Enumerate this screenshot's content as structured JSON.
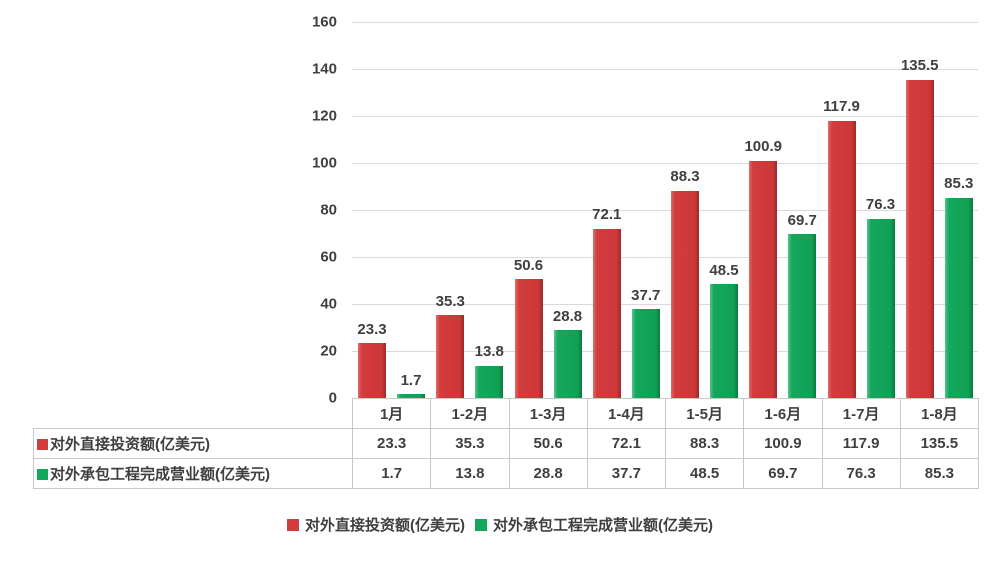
{
  "chart_data": {
    "type": "bar",
    "title": "",
    "xlabel": "",
    "ylabel": "",
    "categories": [
      "1月",
      "1-2月",
      "1-3月",
      "1-4月",
      "1-5月",
      "1-6月",
      "1-7月",
      "1-8月"
    ],
    "series": [
      {
        "name": "对外直接投资额(亿美元)",
        "values": [
          23.3,
          35.3,
          50.6,
          72.1,
          88.3,
          100.9,
          117.9,
          135.5
        ],
        "color": "#D23C3C",
        "color_light": "#E16A6A",
        "color_dark": "#9B2B2B"
      },
      {
        "name": "对外承包工程完成营业额(亿美元)",
        "values": [
          1.7,
          13.8,
          28.8,
          37.7,
          48.5,
          69.7,
          76.3,
          85.3
        ],
        "color": "#14A75C",
        "color_light": "#52C489",
        "color_dark": "#0B7A40"
      }
    ],
    "ylim": [
      0,
      160
    ],
    "yticks": [
      0,
      20,
      40,
      60,
      80,
      100,
      120,
      140,
      160
    ],
    "grid": true,
    "legend_position": "bottom",
    "show_data_table": true,
    "text_color": "#3F3F3F",
    "gridline_color": "#DADADA",
    "table_border_color": "#C9C9C9",
    "background_color": "#FFFFFF"
  }
}
